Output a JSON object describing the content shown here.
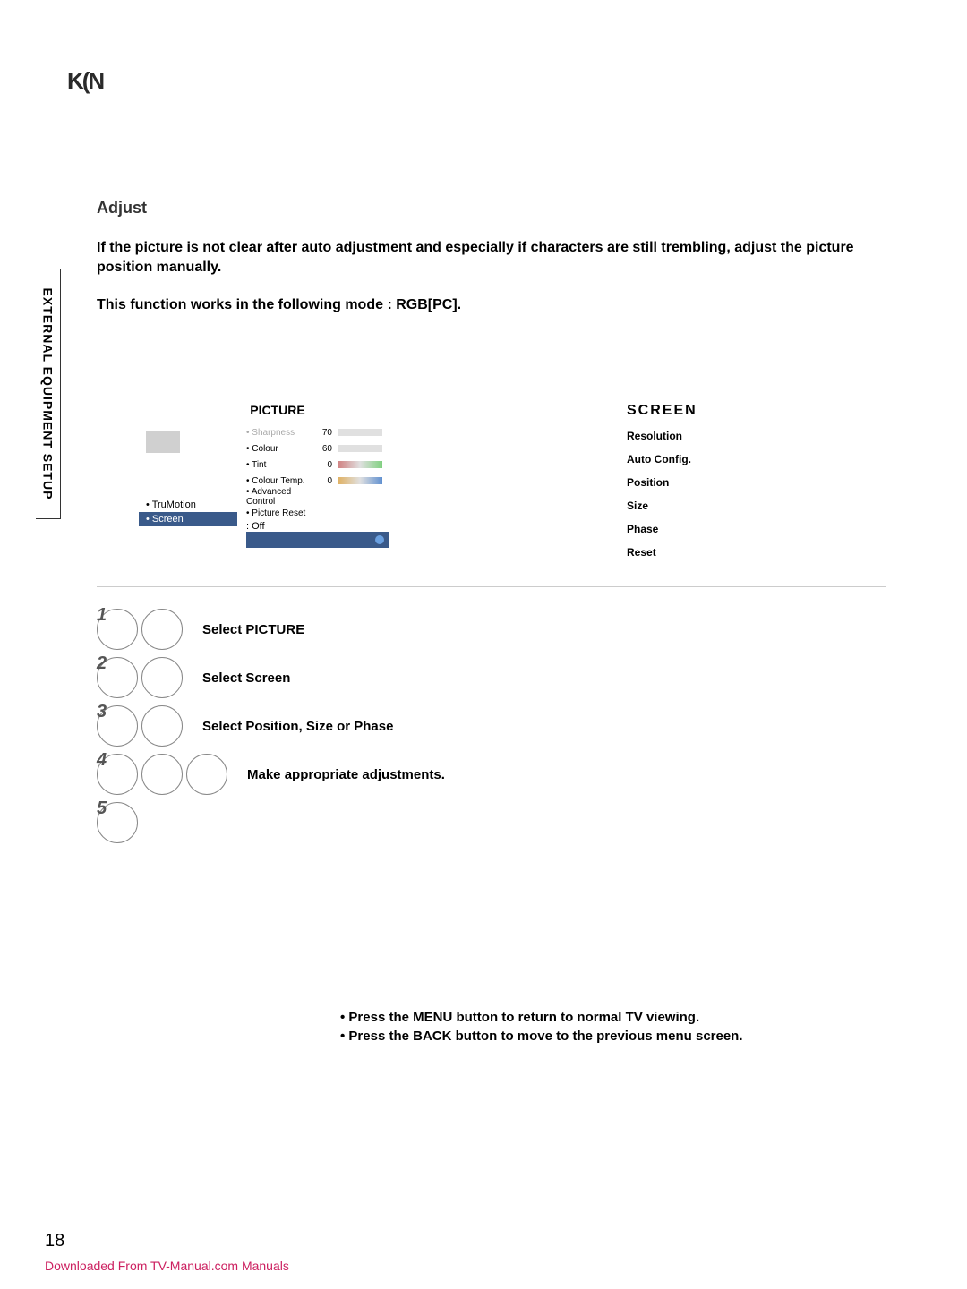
{
  "header_glyph": "K(N",
  "vertical_tab": "EXTERNAL EQUIPMENT SETUP",
  "section_heading": "Adjust",
  "intro": "If the picture is not clear after auto adjustment and especially if characters are still trembling, adjust the picture position manually.",
  "mode_note": "This function works in the following mode : RGB[PC].",
  "picture_panel": {
    "title": "PICTURE",
    "left_items": {
      "trumotion": "• TruMotion",
      "trumotion_val": ": Off",
      "screen": "• Screen"
    },
    "right_rows": [
      {
        "label": "• Sharpness",
        "value": "70",
        "fill_pct": 70,
        "dim": true
      },
      {
        "label": "• Colour",
        "value": "60",
        "fill_pct": 60,
        "dim": false
      },
      {
        "label": "• Tint",
        "value": "0",
        "gradient": "rg",
        "dim": false
      },
      {
        "label": "• Colour Temp.",
        "value": "0",
        "gradient": "wb",
        "dim": false
      },
      {
        "label": "• Advanced Control",
        "value": "",
        "dim": false
      },
      {
        "label": "• Picture Reset",
        "value": "",
        "dim": false
      }
    ]
  },
  "screen_panel": {
    "title": "SCREEN",
    "items": [
      "Resolution",
      "Auto Config.",
      "Position",
      "Size",
      "Phase",
      "Reset"
    ]
  },
  "steps": {
    "s1": "Select PICTURE",
    "s2": "Select Screen",
    "s3_prefix": "Select ",
    "s3_a": "Position",
    "s3_sep1": ", ",
    "s3_b": "Size",
    "s3_sep2": " or ",
    "s3_c": "Phase",
    "s4": "Make appropriate adjustments."
  },
  "footer": {
    "line1_a": "• Press the ",
    "line1_btn": "MENU",
    "line1_b": " button to return to normal TV viewing.",
    "line2_a": "• Press the ",
    "line2_btn": "BACK",
    "line2_b": " button to move to the previous menu screen."
  },
  "page_number": "18",
  "download": "Downloaded From TV-Manual.com Manuals"
}
